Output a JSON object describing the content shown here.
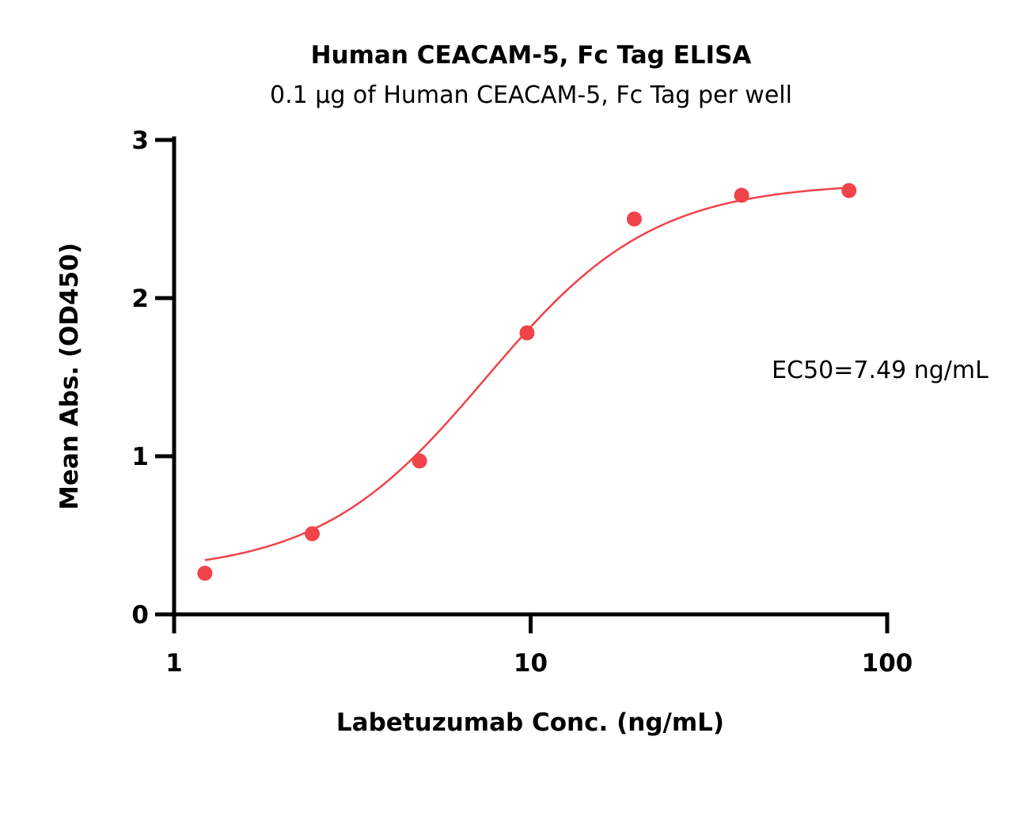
{
  "chart_data": {
    "type": "scatter",
    "title": "Human CEACAM-5, Fc Tag ELISA",
    "subtitle": "0.1 μg of Human CEACAM-5, Fc Tag per well",
    "xlabel": "Labetuzumab Conc. (ng/mL)",
    "ylabel": "Mean Abs. (OD450)",
    "x_scale": "log",
    "xlim": [
      1,
      100
    ],
    "ylim": [
      0,
      3
    ],
    "x_ticks": [
      1,
      10,
      100
    ],
    "x_tick_labels": [
      "1",
      "10",
      "100"
    ],
    "y_ticks": [
      0,
      1,
      2,
      3
    ],
    "y_tick_labels": [
      "0",
      "1",
      "2",
      "3"
    ],
    "grid": false,
    "series": [
      {
        "x": [
          1.22,
          2.44,
          4.88,
          9.77,
          19.53,
          39.06,
          78.13
        ],
        "y": [
          0.26,
          0.51,
          0.97,
          1.78,
          2.5,
          2.65,
          2.68
        ],
        "color": "#f0434a"
      }
    ],
    "fit_curve": {
      "model": "4PL",
      "bottom": 0.26,
      "top": 2.73,
      "ec50": 7.49,
      "hill": 1.85,
      "color": "#f0434a"
    },
    "annotation": "EC50=7.49 ng/mL"
  }
}
